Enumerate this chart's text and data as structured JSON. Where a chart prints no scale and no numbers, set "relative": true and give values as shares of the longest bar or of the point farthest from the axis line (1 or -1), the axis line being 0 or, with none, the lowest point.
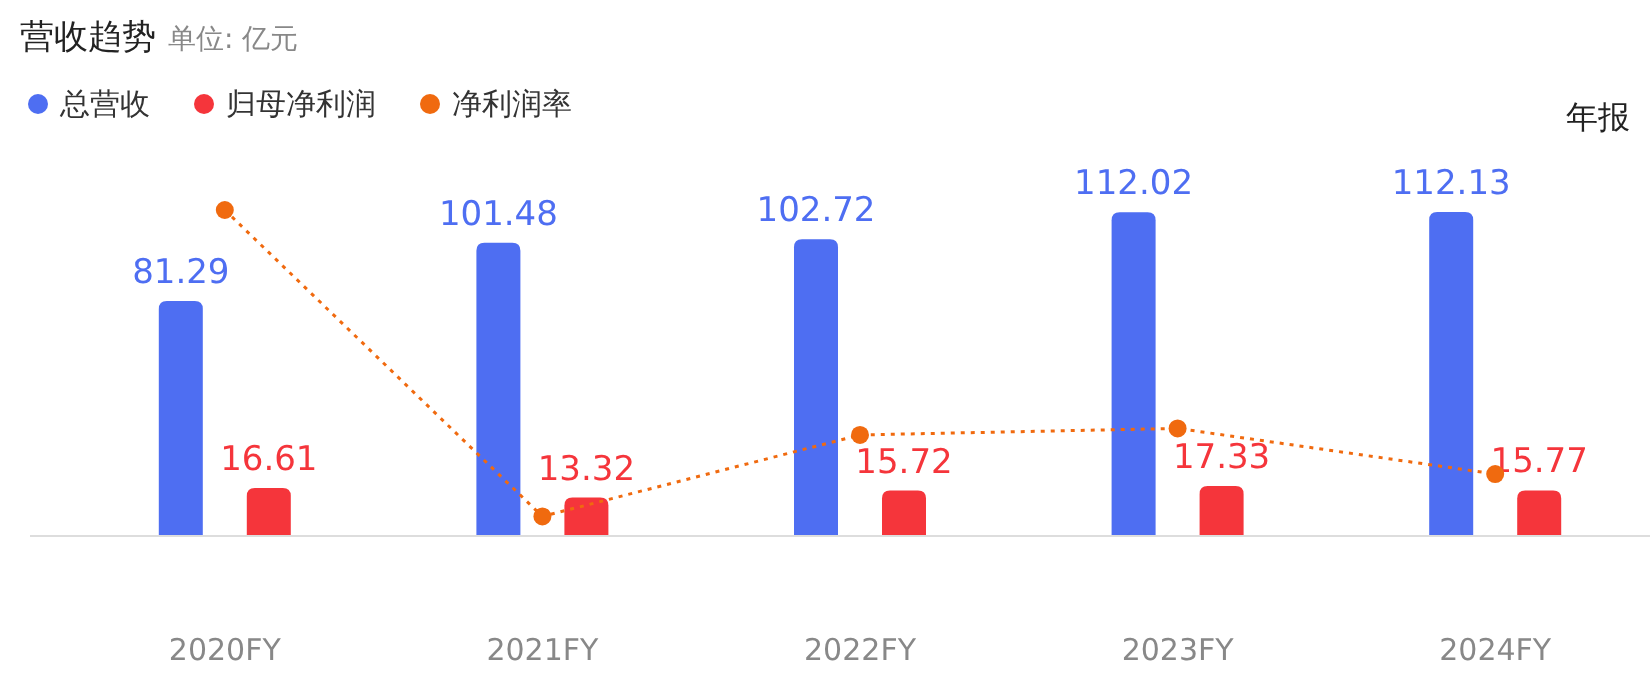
{
  "chart_data": [
    {
      "type": "bar",
      "title": "营收趋势",
      "subtitle": "单位: 亿元",
      "annotations": [
        "年报"
      ],
      "categories": [
        "2020FY",
        "2021FY",
        "2022FY",
        "2023FY",
        "2024FY"
      ],
      "series": [
        {
          "name": "总营收",
          "color": "#4e6ef2",
          "values": [
            81.29,
            101.48,
            102.72,
            112.02,
            112.13
          ]
        },
        {
          "name": "归母净利润",
          "color": "#f5353b",
          "values": [
            16.61,
            13.32,
            15.72,
            17.33,
            15.77
          ]
        }
      ],
      "data_labels": true,
      "legend": "top left"
    },
    {
      "type": "line",
      "relative": true,
      "categories": [
        null,
        null,
        null,
        null,
        null
      ],
      "series": [
        {
          "name": "净利润率",
          "color": "#f06a0f",
          "values": [
            1,
            0.06,
            0.31,
            0.33,
            0.19
          ]
        }
      ],
      "marker": "circle",
      "line_style": "dotted",
      "legend": "top left"
    }
  ]
}
